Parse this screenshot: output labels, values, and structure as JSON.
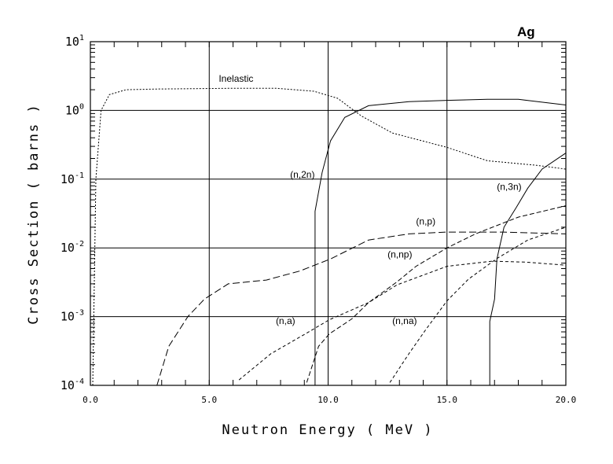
{
  "chart_data": {
    "type": "line",
    "title": "Ag",
    "xlabel": "Neutron Energy ( MeV )",
    "ylabel": "Cross Section ( barns )",
    "xlim": [
      0,
      20
    ],
    "ylim": [
      0.0001,
      10
    ],
    "yscale": "log",
    "grid": true,
    "x_ticks": [
      0,
      5,
      10,
      15,
      20
    ],
    "x_tick_labels": [
      "0.0",
      "5.0",
      "10.0",
      "15.0",
      "20.0"
    ],
    "y_ticks": [
      1,
      0,
      -1,
      -2,
      -3,
      -4
    ],
    "y_tick_labels": [
      {
        "base": "10",
        "exp": "1"
      },
      {
        "base": "10",
        "exp": "0"
      },
      {
        "base": "10",
        "exp": "-1"
      },
      {
        "base": "10",
        "exp": "-2"
      },
      {
        "base": "10",
        "exp": "-3"
      },
      {
        "base": "10",
        "exp": "-4"
      }
    ],
    "series": [
      {
        "name": "Inelastic",
        "dash": "2,2",
        "label_at": [
          5.4,
          2.6
        ],
        "x": [
          0.1,
          0.23,
          0.45,
          0.8,
          1.5,
          2.8,
          6.1,
          7.8,
          9.4,
          10.4,
          11.4,
          12.7,
          15.0,
          16.7,
          18.7,
          20.0
        ],
        "y": [
          0.0001,
          0.1,
          1.0,
          1.7,
          2.0,
          2.05,
          2.1,
          2.1,
          1.9,
          1.5,
          0.83,
          0.47,
          0.29,
          0.185,
          0.16,
          0.14
        ]
      },
      {
        "name": "(n,2n)",
        "dash": "",
        "label_at": [
          8.4,
          0.105
        ],
        "x": [
          9.45,
          9.45,
          9.75,
          10.1,
          10.7,
          11.7,
          13.4,
          15.0,
          16.7,
          18.0,
          20.0
        ],
        "y": [
          0.0001,
          0.034,
          0.125,
          0.36,
          0.79,
          1.17,
          1.34,
          1.4,
          1.45,
          1.45,
          1.2
        ]
      },
      {
        "name": "(n,3n)",
        "dash": "",
        "label_at": [
          17.1,
          0.07
        ],
        "x": [
          16.8,
          16.8,
          17.0,
          17.1,
          17.4,
          17.9,
          18.4,
          19.0,
          20.0
        ],
        "y": [
          0.0001,
          0.00085,
          0.0018,
          0.0069,
          0.02,
          0.038,
          0.074,
          0.14,
          0.24
        ]
      },
      {
        "name": "(n,p)",
        "dash": "9,4",
        "label_at": [
          13.7,
          0.022
        ],
        "x": [
          2.8,
          3.3,
          4.1,
          4.8,
          5.8,
          7.4,
          8.8,
          10.1,
          11.7,
          13.4,
          15.0,
          17.4,
          20.0
        ],
        "y": [
          0.0001,
          0.00037,
          0.001,
          0.0018,
          0.003,
          0.0034,
          0.0046,
          0.0069,
          0.013,
          0.016,
          0.017,
          0.017,
          0.016
        ]
      },
      {
        "name": "(n,np)",
        "dash": "6,3",
        "label_at": [
          12.5,
          0.0072
        ],
        "x": [
          9.1,
          9.6,
          10.05,
          11.0,
          11.7,
          12.9,
          13.7,
          15.0,
          16.2,
          18.0,
          20.0
        ],
        "y": [
          0.00011,
          0.00037,
          0.00056,
          0.00093,
          0.0016,
          0.0032,
          0.0054,
          0.01,
          0.016,
          0.028,
          0.041
        ]
      },
      {
        "name": "(n,a)",
        "dash": "4,3",
        "label_at": [
          7.8,
          0.00078
        ],
        "x": [
          6.25,
          7.6,
          9.0,
          10.05,
          11.7,
          12.9,
          15.0,
          16.9,
          18.3,
          20.0
        ],
        "y": [
          0.00012,
          0.00029,
          0.00055,
          0.0009,
          0.0016,
          0.0029,
          0.0054,
          0.0064,
          0.0062,
          0.0056
        ]
      },
      {
        "name": "(n,na)",
        "dash": "4,3",
        "label_at": [
          12.7,
          0.00078
        ],
        "x": [
          12.6,
          13.4,
          14.1,
          15.0,
          15.9,
          17.1,
          18.4,
          20.0
        ],
        "y": [
          0.00011,
          0.00029,
          0.00064,
          0.0017,
          0.0035,
          0.007,
          0.013,
          0.02
        ]
      }
    ]
  }
}
